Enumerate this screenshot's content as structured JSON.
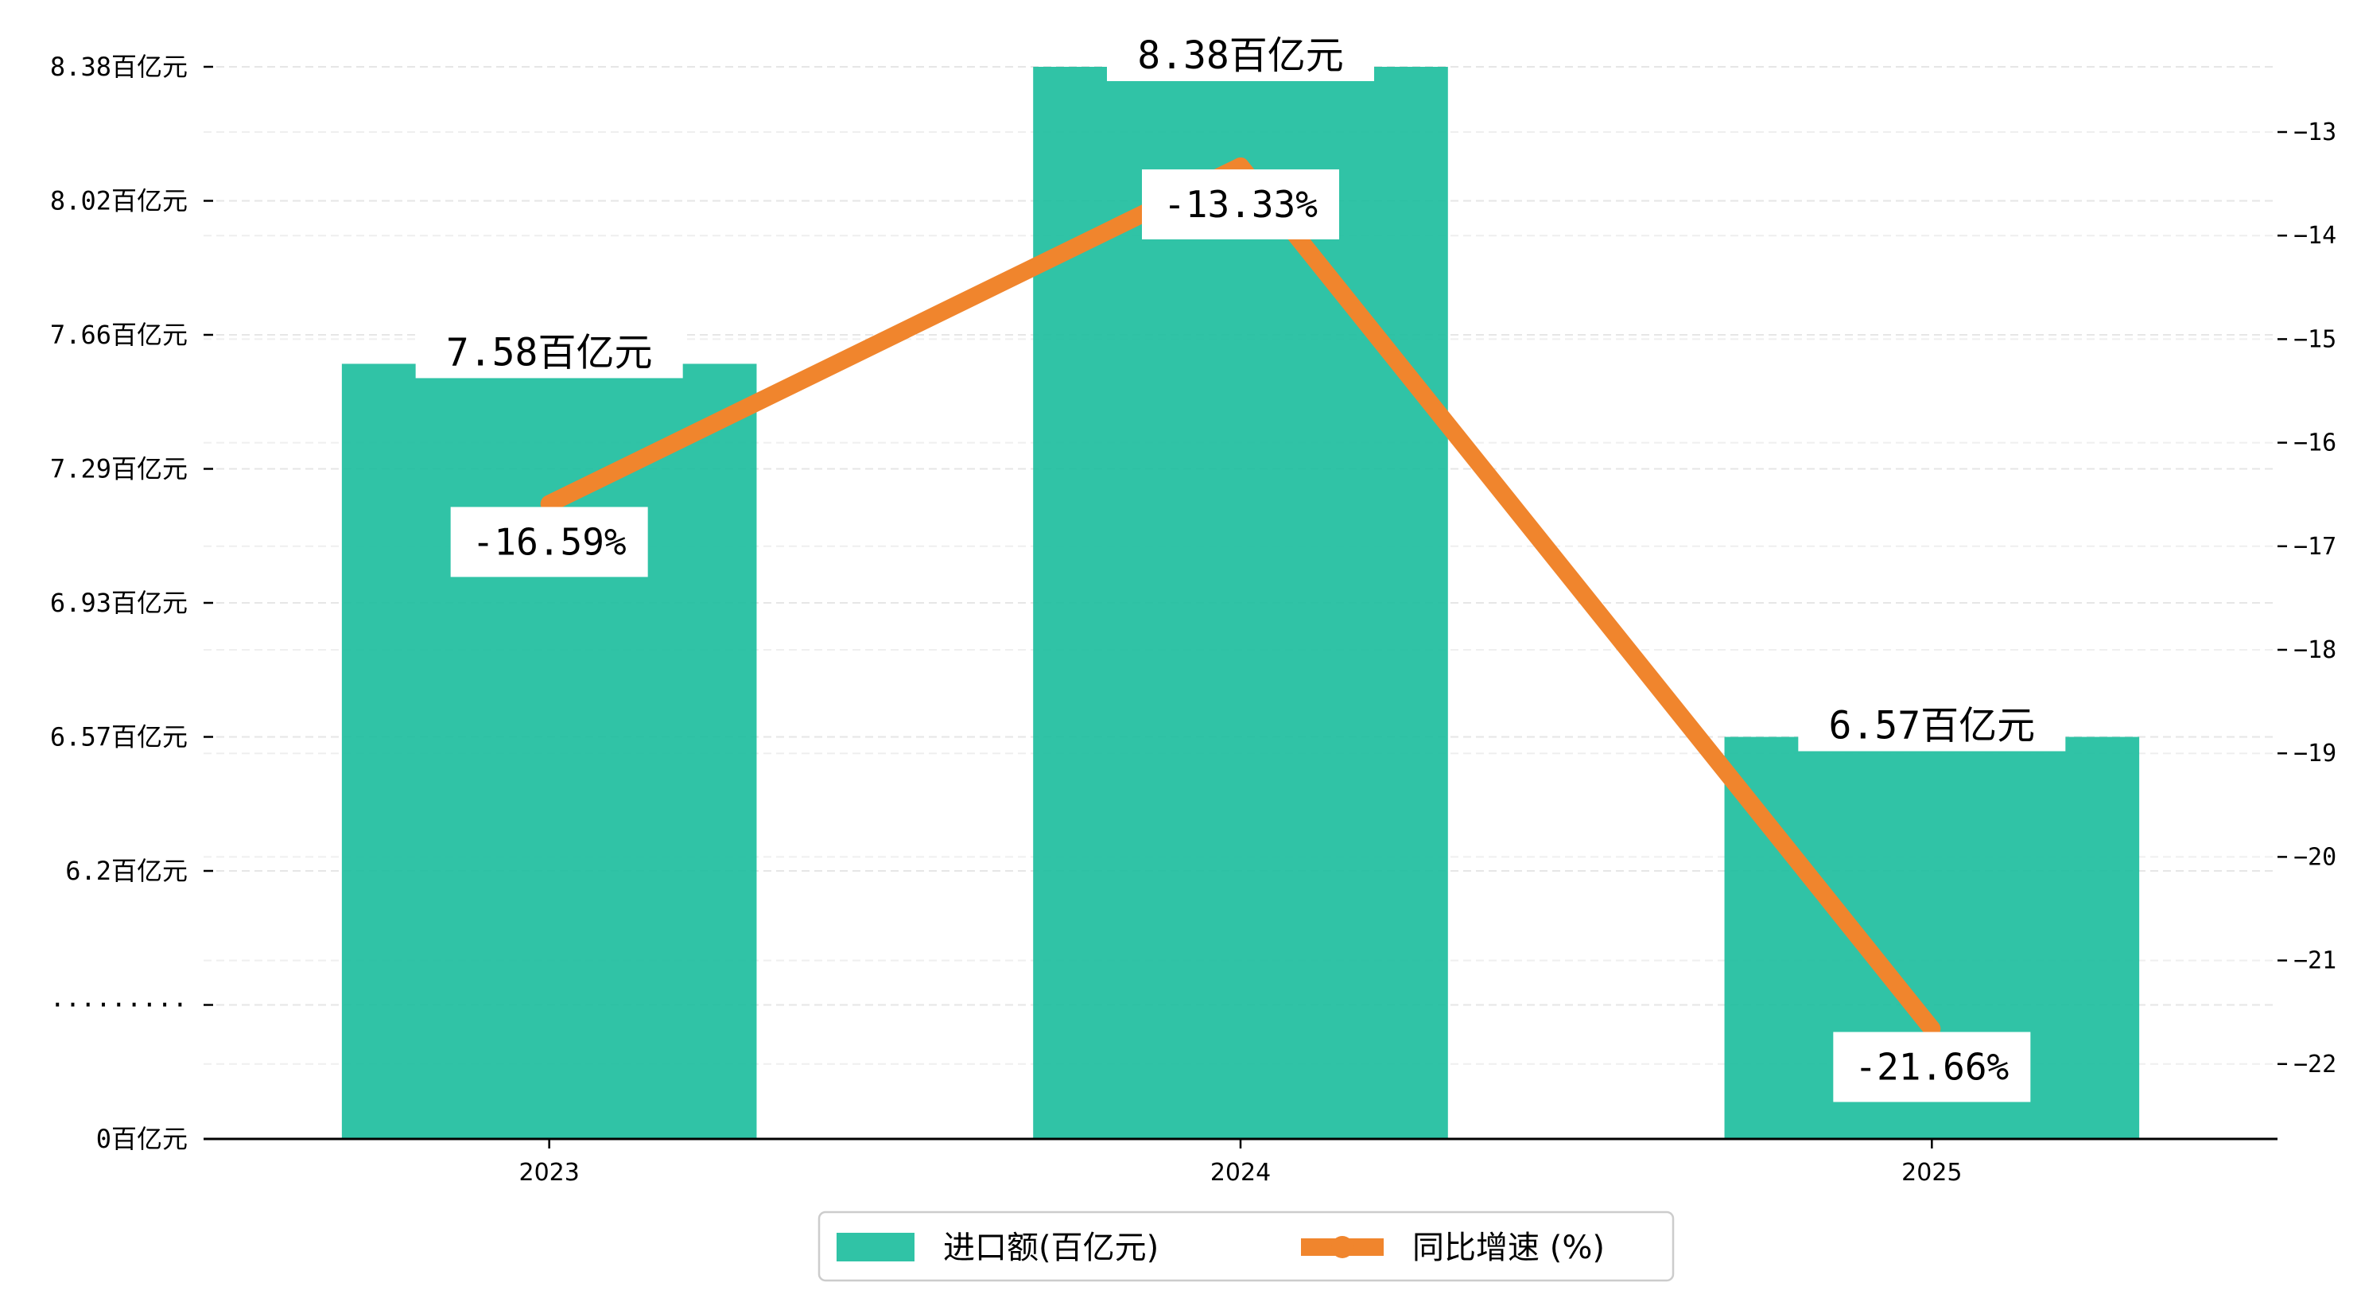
{
  "chart_data": {
    "type": "bar",
    "categories": [
      "2023",
      "2024",
      "2025"
    ],
    "series": [
      {
        "name": "进口额(百亿元)",
        "type": "bar",
        "axis": "left",
        "values": [
          7.58,
          8.38,
          6.57
        ],
        "labels": [
          "7.58百亿元",
          "8.38百亿元",
          "6.57百亿元"
        ],
        "color": "#1ABC9C"
      },
      {
        "name": "同比增速 (%)",
        "type": "line",
        "axis": "right",
        "values": [
          -16.59,
          -13.33,
          -21.66
        ],
        "labels": [
          "-16.59%",
          "-13.33%",
          "-21.66%"
        ],
        "color": "#F0852D"
      }
    ],
    "y_left": {
      "tick_labels": [
        "0百亿元",
        "·········",
        "6.2百亿元",
        "6.57百亿元",
        "6.93百亿元",
        "7.29百亿元",
        "7.66百亿元",
        "8.02百亿元",
        "8.38百亿元"
      ],
      "tick_values": [
        0,
        5.84,
        6.2,
        6.57,
        6.93,
        7.29,
        7.66,
        8.02,
        8.38
      ],
      "broken_axis": true
    },
    "y_right": {
      "tick_labels": [
        "-22",
        "-21",
        "-20",
        "-19",
        "-18",
        "-17",
        "-16",
        "-15",
        "-14",
        "-13"
      ],
      "tick_values": [
        -22,
        -21,
        -20,
        -19,
        -18,
        -17,
        -16,
        -15,
        -14,
        -13
      ],
      "ylim": [
        -22.66,
        -12.33
      ]
    },
    "grid": true,
    "legend_position": "bottom-center"
  }
}
